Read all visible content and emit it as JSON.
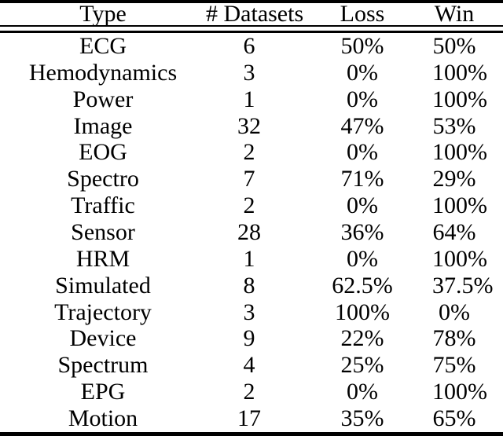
{
  "colors": {
    "background": "#ffffff",
    "text": "#000000",
    "rule": "#000000"
  },
  "chart_data": {
    "type": "table",
    "columns": [
      "Type",
      "# Datasets",
      "Loss",
      "Win"
    ],
    "rows": [
      [
        "ECG",
        "6",
        "50%",
        "50%"
      ],
      [
        "Hemodynamics",
        "3",
        "0%",
        "100%"
      ],
      [
        "Power",
        "1",
        "0%",
        "100%"
      ],
      [
        "Image",
        "32",
        "47%",
        "53%"
      ],
      [
        "EOG",
        "2",
        "0%",
        "100%"
      ],
      [
        "Spectro",
        "7",
        "71%",
        "29%"
      ],
      [
        "Traffic",
        "2",
        "0%",
        "100%"
      ],
      [
        "Sensor",
        "28",
        "36%",
        "64%"
      ],
      [
        "HRM",
        "1",
        "0%",
        "100%"
      ],
      [
        "Simulated",
        "8",
        "62.5%",
        "37.5%"
      ],
      [
        "Trajectory",
        "3",
        "100%",
        "0%"
      ],
      [
        "Device",
        "9",
        "22%",
        "78%"
      ],
      [
        "Spectrum",
        "4",
        "25%",
        "75%"
      ],
      [
        "EPG",
        "2",
        "0%",
        "100%"
      ],
      [
        "Motion",
        "17",
        "35%",
        "65%"
      ]
    ]
  }
}
